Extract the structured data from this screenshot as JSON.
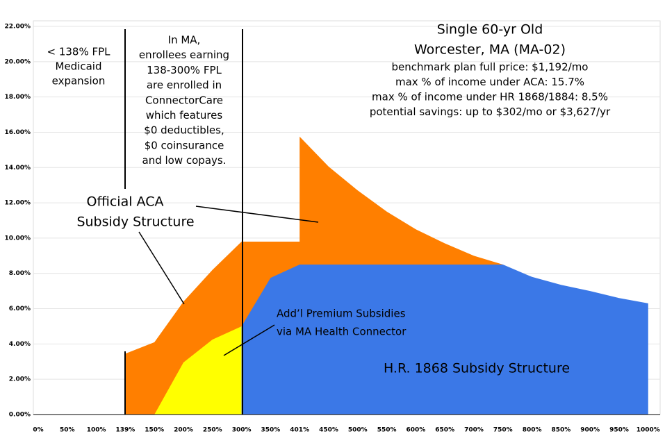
{
  "chart_data": {
    "type": "area",
    "title": [
      "Single 60-yr Old",
      "Worcester, MA (MA-02)"
    ],
    "subtitle": [
      "benchmark plan full price: $1,192/mo",
      "max % of income under ACA: 15.7%",
      "max % of income under HR 1868/1884: 8.5%",
      "potential savings: up to $302/mo or $3,627/yr"
    ],
    "annotations": [
      [
        "< 138% FPL",
        "Medicaid",
        "expansion"
      ],
      [
        "In MA,",
        "enrollees earning",
        "138-300% FPL",
        "are enrolled in",
        "ConnectorCare",
        "which features",
        "$0 deductibles,",
        "$0 coinsurance",
        "and low copays."
      ]
    ],
    "categories": [
      "0%",
      "50%",
      "100%",
      "139%",
      "150%",
      "200%",
      "250%",
      "300%",
      "350%",
      "401%",
      "450%",
      "500%",
      "550%",
      "600%",
      "650%",
      "700%",
      "750%",
      "800%",
      "850%",
      "900%",
      "950%",
      "1000%"
    ],
    "series": [
      {
        "name": [
          "Official ACA",
          "Subsidy Structure"
        ],
        "color": "#ff7f00",
        "x": [
          "139%",
          "150%",
          "200%",
          "250%",
          "300%",
          "350%",
          "401%",
          "401%",
          "450%",
          "500%",
          "550%",
          "600%",
          "650%",
          "700%",
          "750%"
        ],
        "values": [
          3.45,
          4.1,
          6.4,
          8.2,
          9.8,
          9.8,
          9.8,
          15.75,
          14.05,
          12.7,
          11.5,
          10.5,
          9.7,
          9.0,
          8.5
        ]
      },
      {
        "name": [
          "Add’l Premium Subsidies",
          "via MA Health Connector"
        ],
        "color": "#ffff00",
        "x": [
          "150%",
          "200%",
          "250%",
          "300%"
        ],
        "values": [
          0,
          2.95,
          4.25,
          5.0
        ]
      },
      {
        "name": [
          "H.R. 1868 Subsidy Structure"
        ],
        "color": "#3b78e7",
        "x": [
          "300%",
          "350%",
          "401%",
          "450%",
          "500%",
          "550%",
          "600%",
          "650%",
          "700%",
          "750%",
          "800%",
          "850%",
          "900%",
          "950%",
          "1000%"
        ],
        "values": [
          5.0,
          7.75,
          8.5,
          8.5,
          8.5,
          8.5,
          8.5,
          8.5,
          8.5,
          8.5,
          7.8,
          7.35,
          7.0,
          6.6,
          6.3
        ]
      }
    ],
    "ylim": [
      0,
      22
    ],
    "yticks": [
      {
        "value": 0,
        "label": "0.00%"
      },
      {
        "value": 2,
        "label": "2.00%"
      },
      {
        "value": 4,
        "label": "4.00%"
      },
      {
        "value": 6,
        "label": "6.00%"
      },
      {
        "value": 8,
        "label": "8.00%"
      },
      {
        "value": 10,
        "label": "10.00%"
      },
      {
        "value": 12,
        "label": "12.00%"
      },
      {
        "value": 14,
        "label": "14.00%"
      },
      {
        "value": 16,
        "label": "16.00%"
      },
      {
        "value": 18,
        "label": "18.00%"
      },
      {
        "value": 20,
        "label": "20.00%"
      },
      {
        "value": 22,
        "label": "22.00%"
      }
    ],
    "grid": true
  }
}
